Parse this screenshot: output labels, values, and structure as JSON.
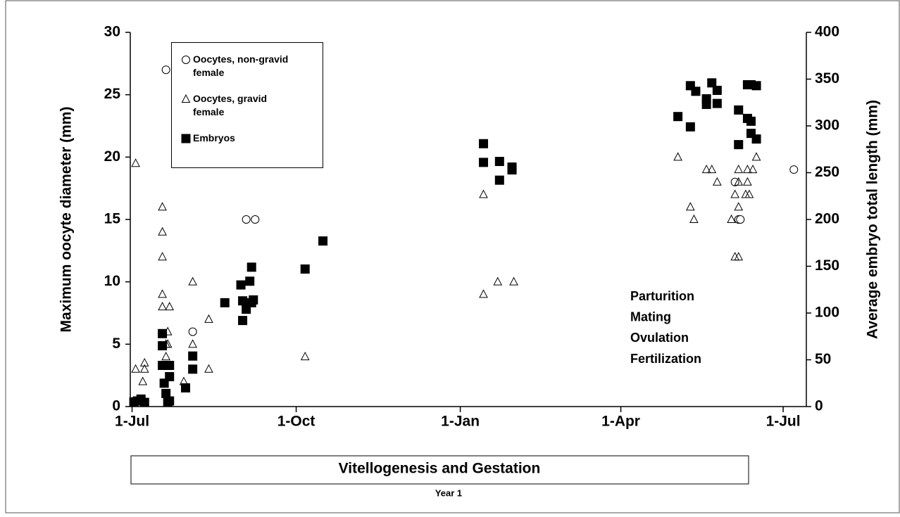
{
  "chart_data": {
    "type": "scatter",
    "xlim": [
      -1,
      378
    ],
    "xticks": [
      {
        "value": 0,
        "label": "1-Jul"
      },
      {
        "value": 92,
        "label": "1-Oct"
      },
      {
        "value": 184,
        "label": "1-Jan"
      },
      {
        "value": 274,
        "label": "1-Apr"
      },
      {
        "value": 365,
        "label": "1-Jul"
      }
    ],
    "ylim": [
      0,
      30
    ],
    "yticks": [
      0,
      5,
      10,
      15,
      20,
      25,
      30
    ],
    "y2lim": [
      0,
      400
    ],
    "y2ticks": [
      0,
      50,
      100,
      150,
      200,
      250,
      300,
      350,
      400
    ],
    "ylabel": "Maximum oocyte diameter (mm)",
    "y2label": "Average embryo total length (mm)",
    "annotations": [
      "Parturition",
      "Mating",
      "Ovulation",
      "Fertilization"
    ],
    "period_label": "Vitellogenesis and Gestation",
    "year_label": "Year 1",
    "series": [
      {
        "name": "Oocytes, non-gravid female",
        "marker": "circle",
        "color": "#000000",
        "x": [
          19,
          34,
          64,
          69,
          338,
          340,
          341,
          371
        ],
        "values": [
          27,
          6,
          15,
          15,
          18,
          15,
          15,
          19
        ]
      },
      {
        "name": "Oocytes, gravid female",
        "marker": "triangle",
        "color": "#000000",
        "x": [
          2,
          2,
          6,
          7,
          7,
          17,
          17,
          17,
          17,
          17,
          21,
          20,
          19,
          20,
          19,
          29,
          34,
          34,
          43,
          43,
          97,
          197,
          197,
          205,
          214,
          306,
          313,
          315,
          322,
          325,
          328,
          336,
          338,
          338,
          340,
          340,
          340,
          340,
          344,
          346,
          345,
          348,
          350,
          345
        ],
        "values": [
          19.5,
          3,
          2,
          3.5,
          3,
          16,
          14,
          12,
          9,
          8,
          8,
          6,
          5,
          5,
          4,
          2,
          10,
          5,
          7,
          3,
          4,
          17,
          9,
          10,
          10,
          20,
          16,
          15,
          19,
          19,
          18,
          15,
          17,
          12,
          19,
          12,
          16,
          18,
          17,
          17,
          19,
          19,
          20,
          18
        ]
      },
      {
        "name": "Embryos",
        "marker": "square",
        "color": "#000000",
        "axis": "y2",
        "x": [
          1,
          3,
          5,
          7,
          17,
          17,
          17,
          18,
          19,
          20,
          21,
          21,
          21,
          30,
          34,
          34,
          52,
          61,
          62,
          62,
          64,
          66,
          67,
          67,
          68,
          97,
          107,
          197,
          197,
          206,
          206,
          213,
          213,
          306,
          313,
          313,
          316,
          322,
          322,
          325,
          328,
          328,
          340,
          340,
          345,
          347,
          347,
          347,
          350,
          350,
          345
        ],
        "values": [
          5,
          6,
          8,
          4.5,
          78,
          65,
          44,
          25,
          14,
          5,
          32,
          44,
          6,
          20,
          40,
          54,
          111,
          130,
          113,
          92,
          104,
          134,
          149,
          111,
          114,
          147,
          177,
          281,
          261,
          262,
          242,
          256,
          253,
          310,
          299,
          343,
          337,
          329,
          323,
          346,
          338,
          324,
          317,
          280,
          344,
          305,
          292,
          344,
          343,
          286,
          308
        ]
      }
    ]
  }
}
